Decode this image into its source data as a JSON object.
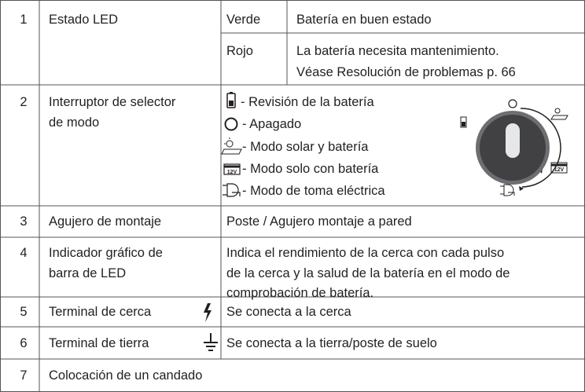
{
  "table": {
    "rows": [
      {
        "number": "1",
        "item": "Estado LED",
        "details": [
          {
            "state": "Verde",
            "meaning": [
              "Batería en buen estado"
            ]
          },
          {
            "state": "Rojo",
            "meaning": [
              "La batería necesita mantenimiento.",
              "Véase Resolución de problemas p. 66"
            ]
          }
        ]
      },
      {
        "number": "2",
        "item": [
          "Interruptor de selector",
          "de modo"
        ],
        "modes": [
          "- Revisión de la batería",
          "- Apagado",
          "- Modo solar y batería",
          "- Modo solo con batería",
          "- Modo de toma eléctrica"
        ],
        "icon_label": "12V"
      },
      {
        "number": "3",
        "item": "Agujero de montaje",
        "description": [
          "Poste / Agujero montaje a pared"
        ]
      },
      {
        "number": "4",
        "item": [
          "Indicador gráfico de",
          "barra de LED"
        ],
        "description": [
          "Indica el rendimiento de la cerca con cada pulso",
          "de la cerca y la salud de la batería en el modo de",
          "comprobación de batería."
        ]
      },
      {
        "number": "5",
        "item": "Terminal de cerca",
        "description": [
          "Se conecta a la cerca"
        ]
      },
      {
        "number": "6",
        "item": "Terminal de tierra",
        "description": [
          "Se conecta a la tierra/poste de suelo"
        ]
      },
      {
        "number": "7",
        "item": "Colocación de un candado"
      }
    ]
  }
}
